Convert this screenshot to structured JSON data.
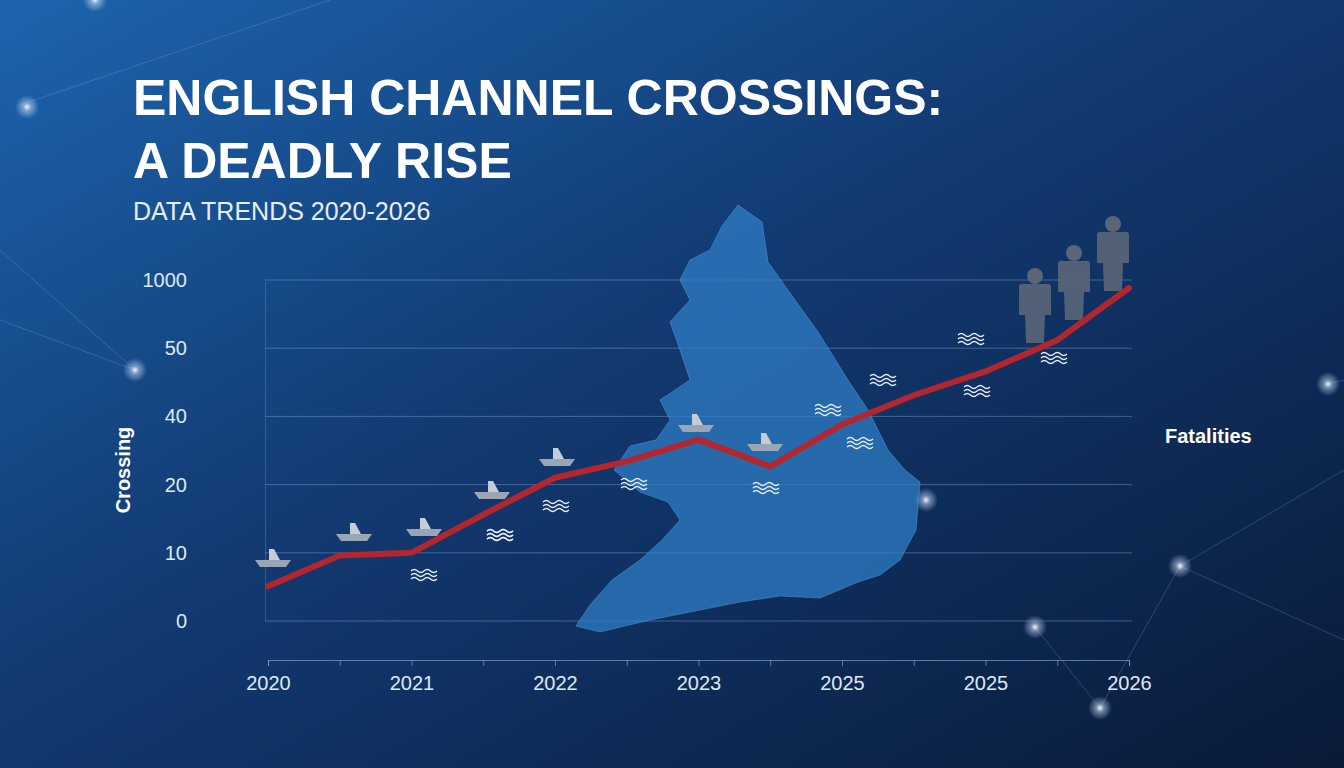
{
  "chart_data": {
    "type": "line",
    "title": [
      "ENGLISH CHANNEL CROSSINGS:",
      "A DEADLY RISE"
    ],
    "subtitle": "DATA TRENDS 2020-2026",
    "y_label": "Crossing",
    "annotations": [
      "Fatalities"
    ],
    "categories": [
      "2020",
      null,
      "2021",
      null,
      "2022",
      null,
      "2023",
      null,
      "2025",
      null,
      "2025",
      null,
      "2026"
    ],
    "values": [
      5.1,
      9.6,
      10,
      15.6,
      22,
      26.8,
      33.2,
      25.3,
      37.6,
      43.1,
      46.6,
      162,
      888
    ],
    "color": "#b3262e",
    "ylim": [
      0,
      1000
    ],
    "yticks": [
      0,
      10,
      20,
      40,
      50,
      1000
    ],
    "grid": true
  }
}
